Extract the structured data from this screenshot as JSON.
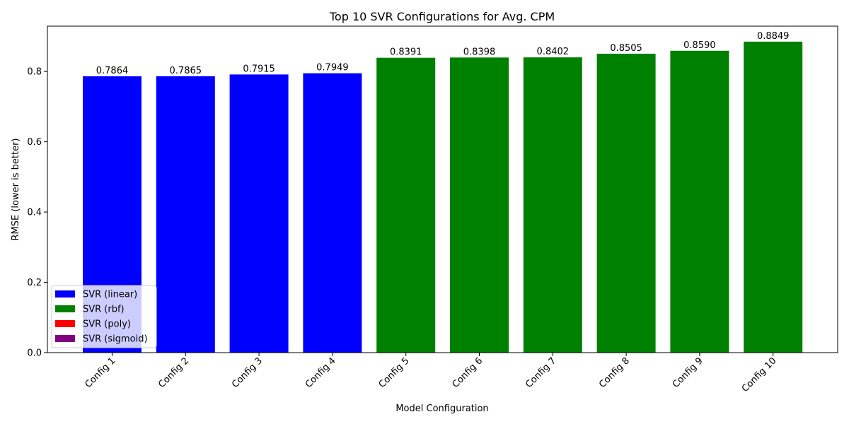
{
  "chart_data": {
    "type": "bar",
    "title": "Top 10 SVR Configurations for Avg. CPM",
    "xlabel": "Model Configuration",
    "ylabel": "RMSE (lower is better)",
    "ylim": [
      0,
      0.929
    ],
    "yticks": [
      0.0,
      0.2,
      0.4,
      0.6,
      0.8
    ],
    "ytick_labels": [
      "0.0",
      "0.2",
      "0.4",
      "0.6",
      "0.8"
    ],
    "grid": false,
    "categories": [
      "Config 1",
      "Config 2",
      "Config 3",
      "Config 4",
      "Config 5",
      "Config 6",
      "Config 7",
      "Config 8",
      "Config 9",
      "Config 10"
    ],
    "values": [
      0.7864,
      0.7865,
      0.7915,
      0.7949,
      0.8391,
      0.8398,
      0.8402,
      0.8505,
      0.859,
      0.8849
    ],
    "value_labels": [
      "0.7864",
      "0.7865",
      "0.7915",
      "0.7949",
      "0.8391",
      "0.8398",
      "0.8402",
      "0.8505",
      "0.8590",
      "0.8849"
    ],
    "bar_series": [
      "SVR (linear)",
      "SVR (linear)",
      "SVR (linear)",
      "SVR (linear)",
      "SVR (rbf)",
      "SVR (rbf)",
      "SVR (rbf)",
      "SVR (rbf)",
      "SVR (rbf)",
      "SVR (rbf)"
    ],
    "legend": {
      "placement": "lower-left",
      "entries": [
        {
          "label": "SVR (linear)",
          "color": "#0000ff"
        },
        {
          "label": "SVR (rbf)",
          "color": "#008000"
        },
        {
          "label": "SVR (poly)",
          "color": "#ff0000"
        },
        {
          "label": "SVR (sigmoid)",
          "color": "#800080"
        }
      ]
    }
  }
}
